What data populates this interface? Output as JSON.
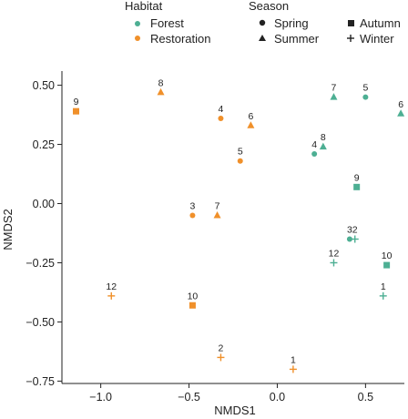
{
  "chart_data": {
    "type": "scatter",
    "xlabel": "NMDS1",
    "ylabel": "NMDS2",
    "xlim": [
      -1.22,
      0.72
    ],
    "ylim": [
      -0.76,
      0.56
    ],
    "xticks": [
      -1.0,
      -0.5,
      0.0,
      0.5
    ],
    "xtick_labels": [
      "−1.0",
      "−0.5",
      "0.0",
      "0.5"
    ],
    "yticks": [
      -0.75,
      -0.5,
      -0.25,
      0.0,
      0.25,
      0.5
    ],
    "ytick_labels": [
      "−0.75",
      "−0.50",
      "−0.25",
      "0.00",
      "0.25",
      "0.50"
    ],
    "legend": {
      "habitat_title": "Habitat",
      "habitat": [
        {
          "name": "Forest",
          "color": "#4daf93"
        },
        {
          "name": "Restoration",
          "color": "#f0902a"
        }
      ],
      "season_title": "Season",
      "season": [
        {
          "name": "Spring",
          "marker": "circle"
        },
        {
          "name": "Autumn",
          "marker": "square"
        },
        {
          "name": "Summer",
          "marker": "triangle"
        },
        {
          "name": "Winter",
          "marker": "plus"
        }
      ]
    },
    "points": [
      {
        "label": "5",
        "x": 0.5,
        "y": 0.45,
        "habitat": "Forest",
        "season": "Spring"
      },
      {
        "label": "4",
        "x": 0.21,
        "y": 0.21,
        "habitat": "Forest",
        "season": "Spring"
      },
      {
        "label": "3",
        "x": 0.41,
        "y": -0.15,
        "habitat": "Forest",
        "season": "Spring"
      },
      {
        "label": "7",
        "x": 0.32,
        "y": 0.45,
        "habitat": "Forest",
        "season": "Summer"
      },
      {
        "label": "6",
        "x": 0.7,
        "y": 0.38,
        "habitat": "Forest",
        "season": "Summer"
      },
      {
        "label": "8",
        "x": 0.26,
        "y": 0.24,
        "habitat": "Forest",
        "season": "Summer"
      },
      {
        "label": "9",
        "x": 0.45,
        "y": 0.07,
        "habitat": "Forest",
        "season": "Autumn"
      },
      {
        "label": "10",
        "x": 0.62,
        "y": -0.26,
        "habitat": "Forest",
        "season": "Autumn"
      },
      {
        "label": "2",
        "x": 0.44,
        "y": -0.15,
        "habitat": "Forest",
        "season": "Winter"
      },
      {
        "label": "12",
        "x": 0.32,
        "y": -0.25,
        "habitat": "Forest",
        "season": "Winter"
      },
      {
        "label": "1",
        "x": 0.6,
        "y": -0.39,
        "habitat": "Forest",
        "season": "Winter"
      },
      {
        "label": "4",
        "x": -0.32,
        "y": 0.36,
        "habitat": "Restoration",
        "season": "Spring"
      },
      {
        "label": "5",
        "x": -0.21,
        "y": 0.18,
        "habitat": "Restoration",
        "season": "Spring"
      },
      {
        "label": "3",
        "x": -0.48,
        "y": -0.05,
        "habitat": "Restoration",
        "season": "Spring"
      },
      {
        "label": "8",
        "x": -0.66,
        "y": 0.47,
        "habitat": "Restoration",
        "season": "Summer"
      },
      {
        "label": "6",
        "x": -0.15,
        "y": 0.33,
        "habitat": "Restoration",
        "season": "Summer"
      },
      {
        "label": "7",
        "x": -0.34,
        "y": -0.05,
        "habitat": "Restoration",
        "season": "Summer"
      },
      {
        "label": "9",
        "x": -1.14,
        "y": 0.39,
        "habitat": "Restoration",
        "season": "Autumn"
      },
      {
        "label": "10",
        "x": -0.48,
        "y": -0.43,
        "habitat": "Restoration",
        "season": "Autumn"
      },
      {
        "label": "12",
        "x": -0.94,
        "y": -0.39,
        "habitat": "Restoration",
        "season": "Winter"
      },
      {
        "label": "2",
        "x": -0.32,
        "y": -0.65,
        "habitat": "Restoration",
        "season": "Winter"
      },
      {
        "label": "1",
        "x": 0.09,
        "y": -0.7,
        "habitat": "Restoration",
        "season": "Winter"
      }
    ]
  }
}
